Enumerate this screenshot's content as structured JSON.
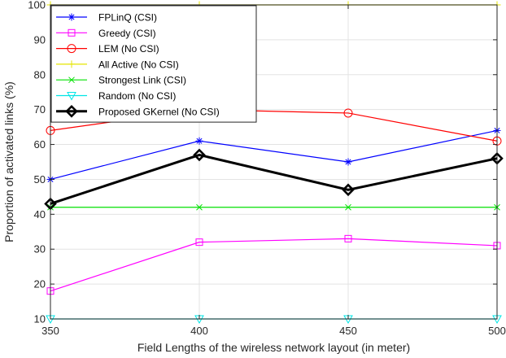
{
  "chart_data": {
    "type": "line",
    "title": "",
    "xlabel": "Field Lengths of the wireless network layout (in meter)",
    "ylabel": "Proportion of activated links (%)",
    "x": [
      350,
      400,
      450,
      500
    ],
    "xlim": [
      350,
      500
    ],
    "ylim": [
      10,
      100
    ],
    "xticks": [
      "350",
      "400",
      "450",
      "500"
    ],
    "yticks": [
      "10",
      "20",
      "30",
      "40",
      "50",
      "60",
      "70",
      "80",
      "90",
      "100"
    ],
    "grid": true,
    "legend_position": "top-left",
    "series": [
      {
        "name": "FPLinQ (CSI)",
        "values": [
          50,
          61,
          55,
          64
        ],
        "color": "#0000ff",
        "marker": "asterisk"
      },
      {
        "name": "Greedy (CSI)",
        "values": [
          18,
          32,
          33,
          31
        ],
        "color": "#ff00ff",
        "marker": "square"
      },
      {
        "name": "LEM (No CSI)",
        "values": [
          64,
          70,
          69,
          61
        ],
        "color": "#ff0000",
        "marker": "circle"
      },
      {
        "name": "All Active (No CSI)",
        "values": [
          100,
          100,
          100,
          100
        ],
        "color": "#e5e500",
        "marker": "plus"
      },
      {
        "name": "Strongest Link (CSI)",
        "values": [
          42,
          42,
          42,
          42
        ],
        "color": "#00e000",
        "marker": "x"
      },
      {
        "name": "Random (No CSI)",
        "values": [
          10,
          10,
          10,
          10
        ],
        "color": "#00e5e5",
        "marker": "triangle-down"
      },
      {
        "name": "Proposed GKernel (No CSI)",
        "values": [
          43,
          57,
          47,
          56
        ],
        "color": "#000000",
        "marker": "diamond"
      }
    ]
  }
}
